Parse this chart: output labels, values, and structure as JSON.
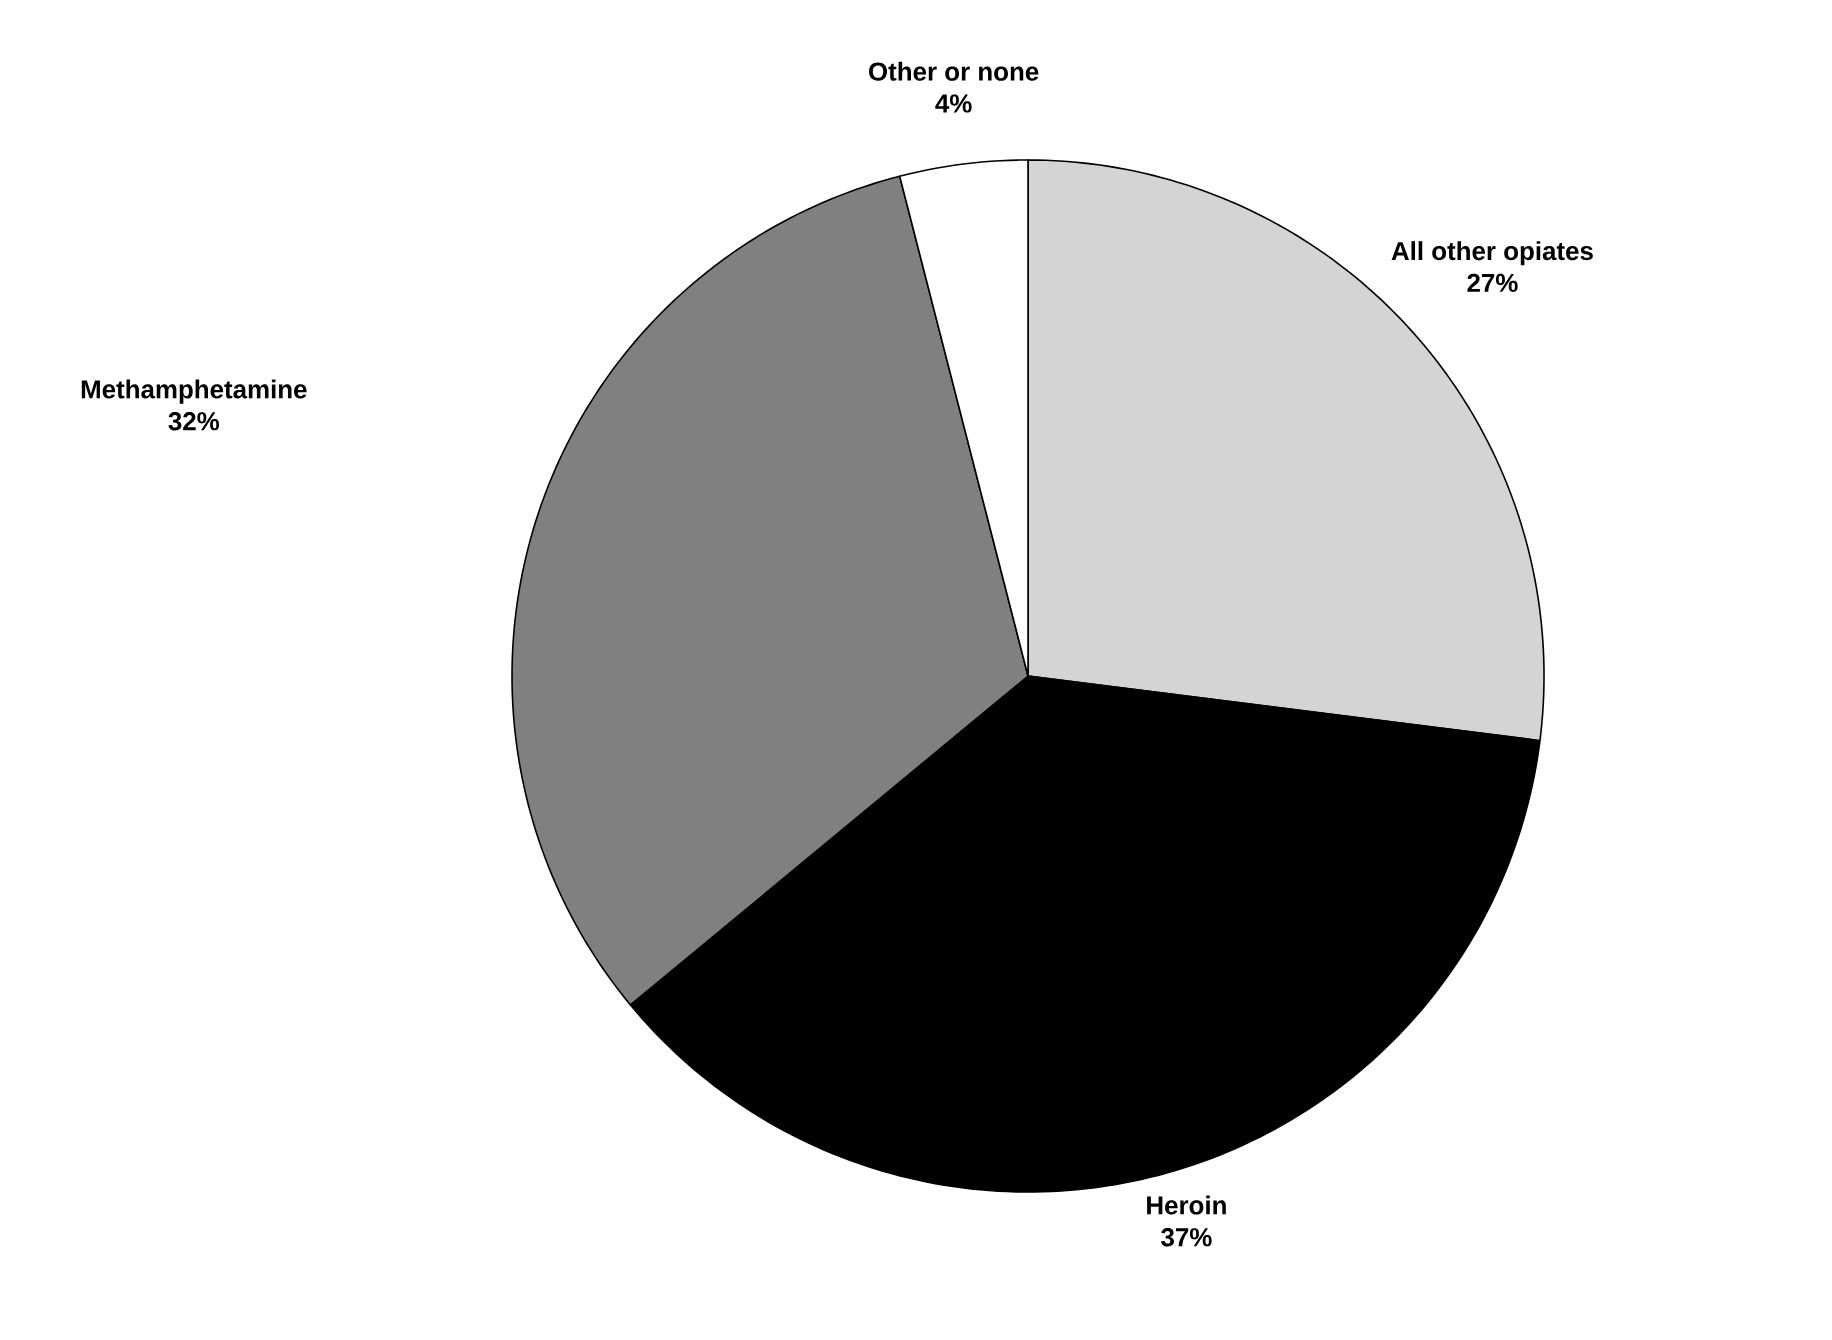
{
  "chart_data": {
    "type": "pie",
    "categories": [
      "All other opiates",
      "Heroin",
      "Methamphetamine",
      "Other or none"
    ],
    "values": [
      27,
      37,
      32,
      4
    ],
    "value_labels": [
      "27%",
      "37%",
      "32%",
      "4%"
    ],
    "colors": [
      "#d4d4d4",
      "#000000",
      "#808080",
      "#ffffff"
    ]
  }
}
